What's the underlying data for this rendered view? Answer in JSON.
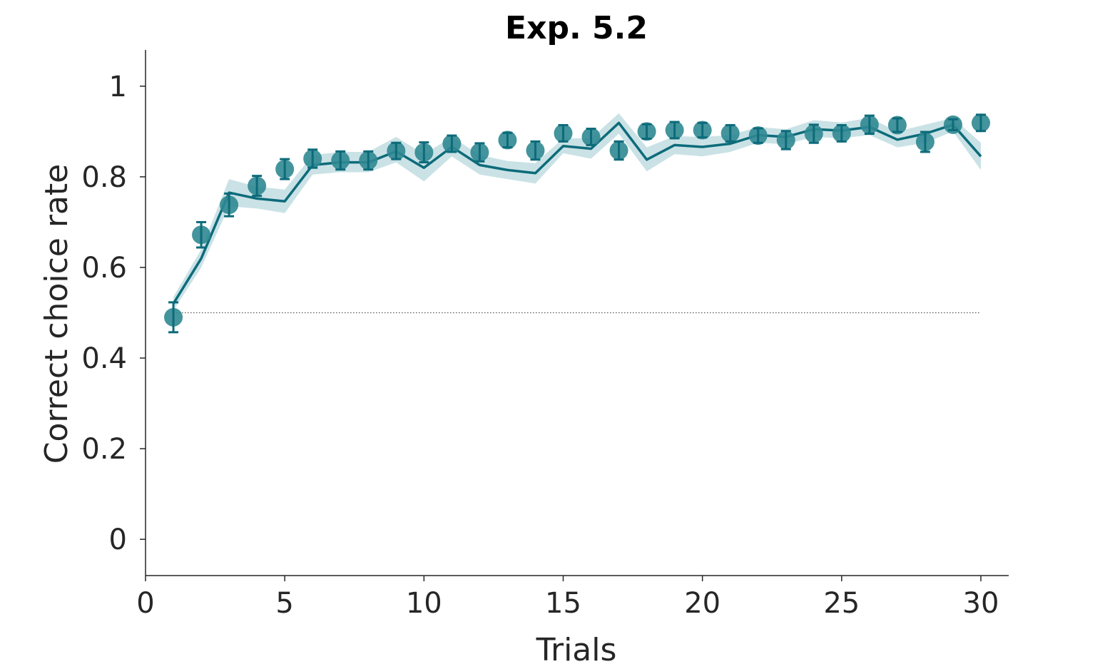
{
  "chart_data": {
    "type": "line",
    "title": "Exp. 5.2",
    "xlabel": "Trials",
    "ylabel": "Correct choice rate",
    "xlim": [
      0,
      31
    ],
    "ylim": [
      -0.08,
      1.08
    ],
    "xticks": [
      0,
      5,
      10,
      15,
      20,
      25,
      30
    ],
    "yticks": [
      0,
      0.2,
      0.4,
      0.6,
      0.8,
      1
    ],
    "ytick_labels": [
      "0",
      "0.2",
      "0.4",
      "0.6",
      "0.8",
      "1"
    ],
    "grid": false,
    "chance_level": 0.5,
    "colors": {
      "line": "#0d6b7a",
      "band": "#9ecbd2",
      "points": "#2f8891",
      "axis": "#262626",
      "chance": "#555555"
    },
    "series": [
      {
        "kind": "observed",
        "x": [
          1,
          2,
          3,
          4,
          5,
          6,
          7,
          8,
          9,
          10,
          11,
          12,
          13,
          14,
          15,
          16,
          17,
          18,
          19,
          20,
          21,
          22,
          23,
          24,
          25,
          26,
          27,
          28,
          29,
          30
        ],
        "y": [
          0.49,
          0.672,
          0.738,
          0.78,
          0.817,
          0.84,
          0.836,
          0.836,
          0.857,
          0.854,
          0.873,
          0.854,
          0.881,
          0.858,
          0.896,
          0.888,
          0.858,
          0.9,
          0.903,
          0.903,
          0.896,
          0.891,
          0.881,
          0.895,
          0.896,
          0.915,
          0.914,
          0.877,
          0.915,
          0.919
        ],
        "err": [
          0.033,
          0.028,
          0.025,
          0.022,
          0.022,
          0.02,
          0.02,
          0.02,
          0.018,
          0.022,
          0.018,
          0.02,
          0.016,
          0.02,
          0.018,
          0.018,
          0.02,
          0.016,
          0.018,
          0.016,
          0.018,
          0.016,
          0.02,
          0.02,
          0.018,
          0.02,
          0.015,
          0.022,
          0.012,
          0.018
        ]
      },
      {
        "kind": "model",
        "x": [
          1,
          2,
          3,
          4,
          5,
          6,
          7,
          8,
          9,
          10,
          11,
          12,
          13,
          14,
          15,
          16,
          17,
          18,
          19,
          20,
          21,
          22,
          23,
          24,
          25,
          26,
          27,
          28,
          29,
          30
        ],
        "y": [
          0.52,
          0.62,
          0.765,
          0.752,
          0.746,
          0.826,
          0.832,
          0.832,
          0.856,
          0.82,
          0.866,
          0.826,
          0.815,
          0.808,
          0.868,
          0.862,
          0.919,
          0.838,
          0.87,
          0.866,
          0.873,
          0.892,
          0.888,
          0.905,
          0.902,
          0.91,
          0.882,
          0.895,
          0.915,
          0.845
        ],
        "lower": [
          0.505,
          0.6,
          0.735,
          0.73,
          0.72,
          0.805,
          0.81,
          0.81,
          0.832,
          0.79,
          0.845,
          0.805,
          0.795,
          0.785,
          0.852,
          0.84,
          0.895,
          0.812,
          0.85,
          0.845,
          0.855,
          0.875,
          0.872,
          0.888,
          0.885,
          0.892,
          0.865,
          0.875,
          0.9,
          0.815
        ],
        "upper": [
          0.535,
          0.64,
          0.795,
          0.778,
          0.772,
          0.848,
          0.855,
          0.855,
          0.888,
          0.85,
          0.888,
          0.848,
          0.835,
          0.83,
          0.885,
          0.885,
          0.94,
          0.865,
          0.89,
          0.888,
          0.892,
          0.91,
          0.905,
          0.925,
          0.92,
          0.93,
          0.9,
          0.915,
          0.93,
          0.875
        ]
      }
    ]
  }
}
